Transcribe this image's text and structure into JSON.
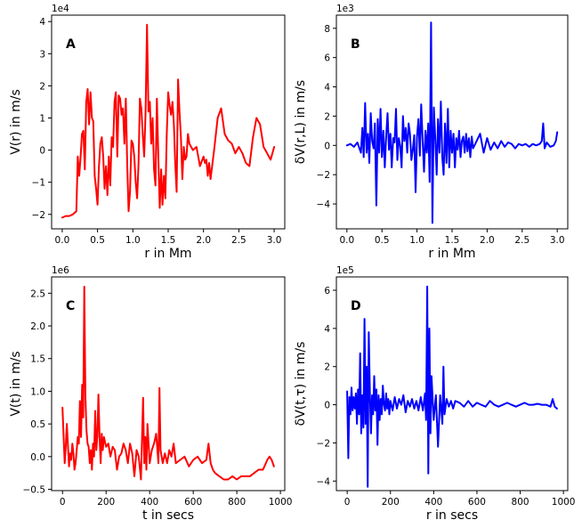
{
  "figure_title": "",
  "colors": {
    "red": "#ff0000",
    "blue": "#0000ff"
  },
  "chart_data": [
    {
      "id": "A",
      "type": "line",
      "letter": "A",
      "color": "#ff0000",
      "title": "",
      "xlabel": "r in Mm",
      "ylabel": "V(r) in m/s",
      "offset_text": "1e4",
      "xlim": [
        -0.15,
        3.15
      ],
      "ylim": [
        -2.45,
        4.2
      ],
      "xticks": [
        0.0,
        0.5,
        1.0,
        1.5,
        2.0,
        2.5,
        3.0
      ],
      "xtick_labels": [
        "0.0",
        "0.5",
        "1.0",
        "1.5",
        "2.0",
        "2.5",
        "3.0"
      ],
      "yticks": [
        -2,
        -1,
        0,
        1,
        2,
        3,
        4
      ],
      "ytick_labels": [
        "−2",
        "−1",
        "0",
        "1",
        "2",
        "3",
        "4"
      ],
      "x": [
        0.0,
        0.05,
        0.1,
        0.15,
        0.2,
        0.22,
        0.24,
        0.26,
        0.28,
        0.3,
        0.32,
        0.34,
        0.36,
        0.38,
        0.4,
        0.42,
        0.44,
        0.46,
        0.48,
        0.5,
        0.52,
        0.54,
        0.56,
        0.58,
        0.6,
        0.62,
        0.64,
        0.66,
        0.68,
        0.7,
        0.72,
        0.74,
        0.76,
        0.78,
        0.8,
        0.82,
        0.84,
        0.86,
        0.88,
        0.9,
        0.92,
        0.94,
        0.96,
        0.98,
        1.0,
        1.02,
        1.04,
        1.06,
        1.08,
        1.1,
        1.12,
        1.14,
        1.16,
        1.18,
        1.2,
        1.22,
        1.24,
        1.26,
        1.28,
        1.3,
        1.32,
        1.34,
        1.36,
        1.38,
        1.4,
        1.42,
        1.44,
        1.46,
        1.48,
        1.5,
        1.52,
        1.54,
        1.56,
        1.58,
        1.6,
        1.62,
        1.64,
        1.66,
        1.68,
        1.7,
        1.72,
        1.74,
        1.76,
        1.78,
        1.8,
        1.85,
        1.9,
        1.95,
        2.0,
        2.02,
        2.04,
        2.06,
        2.08,
        2.1,
        2.15,
        2.2,
        2.25,
        2.3,
        2.35,
        2.4,
        2.45,
        2.5,
        2.55,
        2.6,
        2.65,
        2.7,
        2.75,
        2.8,
        2.85,
        2.9,
        2.95,
        3.0
      ],
      "y": [
        -2.1,
        -2.05,
        -2.05,
        -2.0,
        -1.9,
        -0.2,
        -0.8,
        -0.2,
        0.5,
        0.6,
        -0.6,
        1.5,
        1.9,
        0.8,
        1.8,
        1.0,
        0.9,
        -0.8,
        -1.2,
        -1.7,
        -0.5,
        0.2,
        0.4,
        -0.2,
        -1.2,
        -0.5,
        -1.4,
        -0.2,
        -1.1,
        0.4,
        0.1,
        1.5,
        1.8,
        -0.2,
        1.7,
        1.6,
        1.1,
        1.3,
        0.2,
        1.6,
        -0.5,
        -1.9,
        -1.3,
        0.3,
        0.2,
        -0.2,
        -1.0,
        -1.5,
        -0.4,
        1.6,
        1.3,
        0.5,
        -0.2,
        1.2,
        3.9,
        1.2,
        1.5,
        0.2,
        1.0,
        -0.6,
        -1.1,
        1.6,
        -0.2,
        -1.8,
        -0.6,
        -1.7,
        -0.8,
        -1.5,
        0.5,
        1.8,
        1.4,
        1.1,
        1.5,
        0.8,
        -0.4,
        -1.3,
        2.2,
        1.2,
        0.4,
        -0.9,
        0.1,
        -0.3,
        -0.2,
        0.5,
        0.2,
        0.0,
        0.1,
        -0.5,
        -0.2,
        -0.4,
        -0.3,
        -0.8,
        -0.4,
        -0.9,
        0.0,
        1.0,
        1.3,
        0.5,
        0.3,
        0.2,
        -0.1,
        0.1,
        -0.1,
        -0.4,
        -0.5,
        0.4,
        1.0,
        0.8,
        0.1,
        -0.1,
        -0.3,
        0.1
      ]
    },
    {
      "id": "B",
      "type": "line",
      "letter": "B",
      "color": "#0000ff",
      "title": "",
      "xlabel": "r in Mm",
      "ylabel": "δV(r,L) in m/s",
      "offset_text": "1e3",
      "xlim": [
        -0.15,
        3.15
      ],
      "ylim": [
        -5.7,
        8.9
      ],
      "xticks": [
        0.0,
        0.5,
        1.0,
        1.5,
        2.0,
        2.5,
        3.0
      ],
      "xtick_labels": [
        "0.0",
        "0.5",
        "1.0",
        "1.5",
        "2.0",
        "2.5",
        "3.0"
      ],
      "yticks": [
        -4,
        -2,
        0,
        2,
        4,
        6,
        8
      ],
      "ytick_labels": [
        "−4",
        "−2",
        "0",
        "2",
        "4",
        "6",
        "8"
      ],
      "x": [
        0.0,
        0.05,
        0.1,
        0.15,
        0.2,
        0.22,
        0.24,
        0.26,
        0.28,
        0.3,
        0.32,
        0.34,
        0.36,
        0.38,
        0.4,
        0.42,
        0.44,
        0.46,
        0.48,
        0.5,
        0.52,
        0.54,
        0.56,
        0.58,
        0.6,
        0.62,
        0.64,
        0.66,
        0.68,
        0.7,
        0.72,
        0.74,
        0.76,
        0.78,
        0.8,
        0.82,
        0.84,
        0.86,
        0.88,
        0.9,
        0.92,
        0.94,
        0.96,
        0.98,
        1.0,
        1.02,
        1.04,
        1.06,
        1.08,
        1.1,
        1.12,
        1.14,
        1.16,
        1.18,
        1.2,
        1.22,
        1.24,
        1.26,
        1.28,
        1.3,
        1.32,
        1.34,
        1.36,
        1.38,
        1.4,
        1.42,
        1.44,
        1.46,
        1.48,
        1.5,
        1.52,
        1.54,
        1.56,
        1.58,
        1.6,
        1.62,
        1.64,
        1.66,
        1.68,
        1.7,
        1.72,
        1.74,
        1.76,
        1.78,
        1.8,
        1.85,
        1.9,
        1.95,
        2.0,
        2.05,
        2.1,
        2.15,
        2.2,
        2.25,
        2.3,
        2.35,
        2.4,
        2.45,
        2.5,
        2.55,
        2.6,
        2.65,
        2.7,
        2.75,
        2.78,
        2.8,
        2.82,
        2.85,
        2.9,
        2.95,
        2.98,
        3.0
      ],
      "y": [
        0.0,
        0.1,
        -0.1,
        0.2,
        -0.5,
        1.2,
        -0.8,
        2.9,
        -0.5,
        0.8,
        -1.2,
        2.2,
        0.3,
        -0.2,
        1.5,
        -4.1,
        1.8,
        -0.5,
        2.5,
        -0.8,
        1.0,
        -1.5,
        0.6,
        2.2,
        -0.3,
        0.8,
        -1.5,
        0.5,
        0.2,
        2.5,
        -1.0,
        0.5,
        0.0,
        -1.5,
        2.0,
        0.3,
        1.2,
        -0.5,
        1.5,
        0.8,
        -1.0,
        -0.3,
        0.7,
        -3.2,
        0.6,
        1.8,
        -0.7,
        2.8,
        0.4,
        -1.8,
        1.0,
        -0.5,
        1.5,
        -2.5,
        8.4,
        -5.3,
        2.6,
        0.5,
        -2.0,
        1.8,
        -0.5,
        3.0,
        -0.8,
        -2.0,
        1.5,
        -1.2,
        2.5,
        -1.5,
        1.0,
        -0.5,
        0.8,
        -1.5,
        0.5,
        -0.3,
        1.0,
        -0.8,
        0.3,
        0.6,
        -0.5,
        0.8,
        -0.4,
        0.5,
        -0.8,
        0.6,
        -0.2,
        0.3,
        0.8,
        -0.5,
        0.5,
        -0.3,
        0.2,
        -0.2,
        0.3,
        -0.1,
        0.2,
        0.1,
        -0.2,
        0.1,
        0.0,
        0.1,
        -0.1,
        0.1,
        0.0,
        0.1,
        0.3,
        1.5,
        -0.2,
        0.2,
        -0.1,
        0.0,
        0.3,
        0.9
      ]
    },
    {
      "id": "C",
      "type": "line",
      "letter": "C",
      "color": "#ff0000",
      "title": "",
      "xlabel": "t in secs",
      "ylabel": "V(t) in m/s",
      "offset_text": "1e6",
      "xlim": [
        -50,
        1020
      ],
      "ylim": [
        -0.52,
        2.75
      ],
      "xticks": [
        0,
        200,
        400,
        600,
        800,
        1000
      ],
      "xtick_labels": [
        "0",
        "200",
        "400",
        "600",
        "800",
        "1000"
      ],
      "yticks": [
        -0.5,
        0.0,
        0.5,
        1.0,
        1.5,
        2.0,
        2.5
      ],
      "ytick_labels": [
        "−0.5",
        "0.0",
        "0.5",
        "1.0",
        "1.5",
        "2.0",
        "2.5"
      ],
      "x": [
        0,
        5,
        10,
        15,
        20,
        25,
        30,
        35,
        40,
        45,
        50,
        55,
        60,
        65,
        70,
        75,
        80,
        85,
        90,
        95,
        100,
        105,
        110,
        115,
        120,
        125,
        130,
        135,
        140,
        145,
        150,
        155,
        160,
        165,
        170,
        175,
        180,
        185,
        190,
        200,
        210,
        220,
        230,
        240,
        250,
        260,
        270,
        280,
        290,
        300,
        310,
        320,
        330,
        340,
        350,
        360,
        370,
        375,
        380,
        385,
        390,
        400,
        410,
        420,
        430,
        440,
        445,
        450,
        460,
        470,
        480,
        490,
        500,
        510,
        520,
        540,
        560,
        580,
        600,
        620,
        640,
        660,
        670,
        680,
        690,
        700,
        720,
        740,
        760,
        780,
        800,
        820,
        840,
        860,
        880,
        900,
        920,
        940,
        950,
        960,
        970
      ],
      "y": [
        0.75,
        0.3,
        -0.1,
        0.15,
        0.5,
        0.15,
        -0.15,
        0.05,
        -0.05,
        0.2,
        0.05,
        -0.2,
        -0.1,
        0.1,
        0.3,
        0.2,
        0.85,
        0.3,
        1.1,
        0.6,
        2.6,
        0.9,
        0.4,
        0.2,
        0.15,
        -0.1,
        0.1,
        -0.2,
        0.2,
        0.0,
        0.7,
        0.1,
        0.3,
        0.95,
        0.3,
        -0.1,
        0.35,
        0.1,
        0.3,
        0.15,
        0.2,
        0.0,
        0.15,
        0.1,
        -0.2,
        0.0,
        0.05,
        0.2,
        0.1,
        -0.1,
        0.2,
        0.05,
        -0.3,
        0.1,
        0.0,
        -0.35,
        0.9,
        -0.1,
        0.3,
        -0.2,
        0.5,
        -0.1,
        0.1,
        0.2,
        0.35,
        -0.1,
        1.05,
        0.1,
        -0.1,
        0.05,
        -0.1,
        0.1,
        0.0,
        0.2,
        -0.1,
        -0.05,
        0.0,
        -0.15,
        -0.05,
        0.0,
        -0.1,
        -0.05,
        0.2,
        -0.1,
        -0.2,
        -0.25,
        -0.3,
        -0.35,
        -0.35,
        -0.3,
        -0.35,
        -0.3,
        -0.3,
        -0.3,
        -0.25,
        -0.2,
        -0.2,
        -0.05,
        0.0,
        -0.05,
        -0.15
      ]
    },
    {
      "id": "D",
      "type": "line",
      "letter": "D",
      "color": "#0000ff",
      "title": "",
      "xlabel": "r in secs",
      "ylabel": "δV(t,τ) in m/s",
      "offset_text": "1e5",
      "xlim": [
        -50,
        1020
      ],
      "ylim": [
        -4.5,
        6.7
      ],
      "xticks": [
        0,
        200,
        400,
        600,
        800,
        1000
      ],
      "xtick_labels": [
        "0",
        "200",
        "400",
        "600",
        "800",
        "1000"
      ],
      "yticks": [
        -4,
        -2,
        0,
        2,
        4,
        6
      ],
      "ytick_labels": [
        "−4",
        "−2",
        "0",
        "2",
        "4",
        "6"
      ],
      "x": [
        0,
        5,
        10,
        15,
        20,
        25,
        30,
        35,
        40,
        45,
        50,
        55,
        60,
        65,
        70,
        75,
        80,
        85,
        90,
        95,
        100,
        105,
        110,
        115,
        120,
        125,
        130,
        135,
        140,
        145,
        150,
        155,
        160,
        165,
        170,
        175,
        180,
        185,
        190,
        195,
        200,
        210,
        220,
        230,
        240,
        250,
        260,
        270,
        280,
        290,
        300,
        310,
        320,
        330,
        340,
        350,
        360,
        365,
        370,
        375,
        380,
        385,
        390,
        400,
        410,
        420,
        430,
        440,
        445,
        450,
        460,
        470,
        480,
        490,
        500,
        520,
        540,
        560,
        580,
        600,
        620,
        640,
        660,
        680,
        700,
        720,
        740,
        760,
        780,
        800,
        820,
        840,
        860,
        880,
        900,
        920,
        940,
        950,
        960,
        970
      ],
      "y": [
        0.7,
        -2.8,
        0.4,
        -0.5,
        0.9,
        -0.3,
        0.4,
        -0.2,
        0.6,
        -1.0,
        0.8,
        -0.5,
        2.7,
        -1.5,
        0.5,
        -1.2,
        4.5,
        -1.0,
        2.0,
        -4.3,
        3.8,
        0.5,
        -1.5,
        0.5,
        -0.5,
        1.5,
        -0.3,
        0.8,
        -2.1,
        0.5,
        -0.8,
        0.3,
        -0.5,
        1.0,
        0.0,
        -0.3,
        0.6,
        -0.2,
        0.3,
        -0.5,
        0.2,
        -0.3,
        0.4,
        -0.2,
        0.3,
        0.0,
        0.5,
        -0.4,
        0.2,
        -0.1,
        0.3,
        -0.2,
        0.2,
        -0.3,
        0.4,
        -0.3,
        0.6,
        -0.8,
        6.2,
        -3.6,
        4.0,
        -1.5,
        1.5,
        -0.8,
        0.5,
        -2.2,
        0.5,
        -1.0,
        2.0,
        -0.5,
        0.3,
        -0.1,
        0.2,
        -0.2,
        0.2,
        0.1,
        -0.1,
        0.2,
        -0.1,
        0.1,
        0.0,
        -0.1,
        0.2,
        0.0,
        -0.1,
        0.0,
        0.1,
        0.0,
        -0.1,
        0.0,
        0.1,
        0.0,
        0.0,
        0.05,
        0.0,
        0.0,
        -0.1,
        0.3,
        -0.1,
        -0.2
      ]
    }
  ]
}
